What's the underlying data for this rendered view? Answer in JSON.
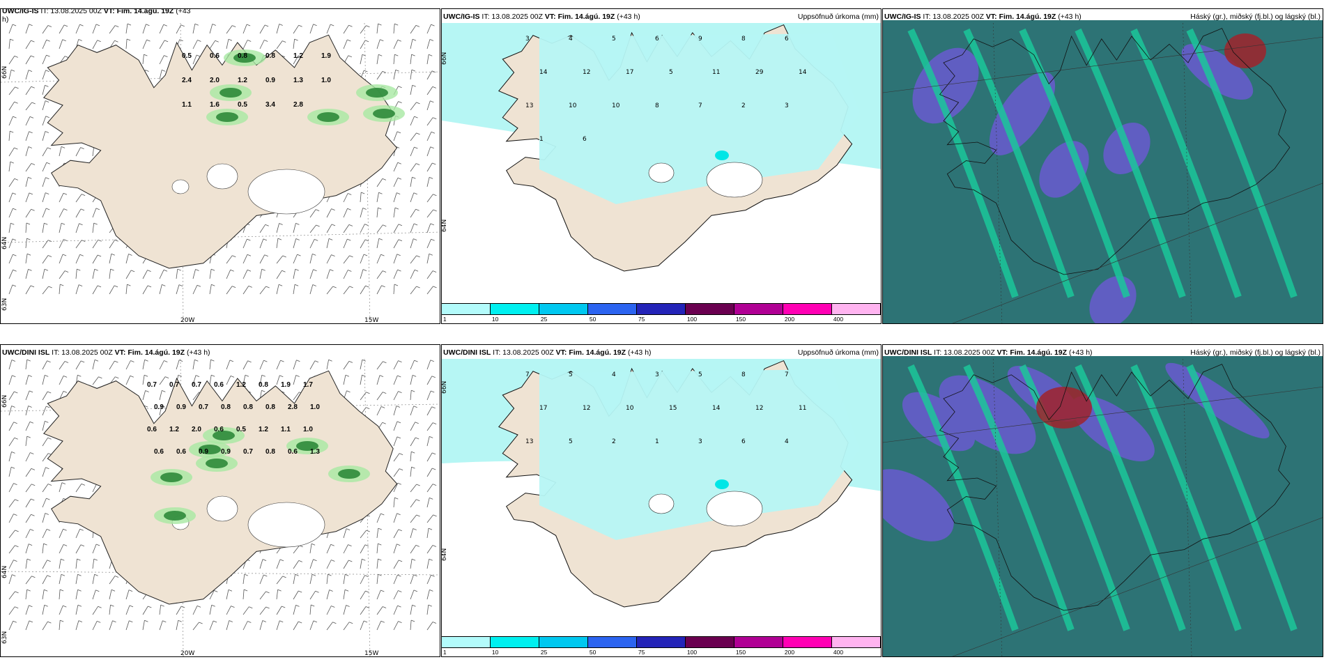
{
  "rows": [
    {
      "model": "UWC/IG-IS",
      "panels": [
        {
          "title_model": "UWC/IG-IS",
          "it": "IT: 13.08.2025 00Z",
          "vt": "VT: Fim. 14.ágú. 19Z",
          "lead": "(+43",
          "lead2": "h)",
          "right": ""
        },
        {
          "title_model": "UWC/IG-IS",
          "it": "IT: 13.08.2025 00Z",
          "vt": "VT: Fim. 14.ágú. 19Z",
          "lead": "(+43 h)",
          "right": "Uppsöfnuð úrkoma (mm)"
        },
        {
          "title_model": "UWC/IG-IS",
          "it": "IT: 13.08.2025 00Z",
          "vt": "VT: Fim. 14.ágú. 19Z",
          "lead": "(+43 h)",
          "right": "Háský (gr.), miðský (fj.bl.) og lágský (bl.)"
        }
      ],
      "gust_labels": [
        "0.5",
        "0.6",
        "0.8",
        "0.8",
        "1.2",
        "1.9",
        "2.4",
        "2.0",
        "1.2",
        "0.9",
        "1.3",
        "1.0",
        "1.1",
        "1.6",
        "0.5",
        "3.4",
        "2.8"
      ],
      "rain_labels": [
        "3",
        "4",
        "5",
        "6",
        "9",
        "8",
        "6",
        "14",
        "12",
        "17",
        "5",
        "11",
        "29",
        "14",
        "13",
        "10",
        "10",
        "8",
        "7",
        "2",
        "3",
        "1",
        "6"
      ]
    },
    {
      "model": "UWC/DINI ISL",
      "panels": [
        {
          "title_model": "UWC/DINI ISL",
          "it": "IT: 13.08.2025 00Z",
          "vt": "VT: Fim. 14.ágú. 19Z",
          "lead": "(+43 h)",
          "right": ""
        },
        {
          "title_model": "UWC/DINI ISL",
          "it": "IT: 13.08.2025 00Z",
          "vt": "VT: Fim. 14.ágú. 19Z",
          "lead": "(+43 h)",
          "right": "Uppsöfnuð úrkoma (mm)"
        },
        {
          "title_model": "UWC/DINI ISL",
          "it": "IT: 13.08.2025 00Z",
          "vt": "VT: Fim. 14.ágú. 19Z",
          "lead": "(+43 h)",
          "right": "Háský (gr.), miðský (fj.bl.) og lágský (bl.)"
        }
      ],
      "gust_labels": [
        "0.7",
        "0.7",
        "0.7",
        "0.6",
        "1.2",
        "0.8",
        "1.9",
        "1.7",
        "0.9",
        "0.9",
        "0.7",
        "0.8",
        "0.8",
        "0.8",
        "2.8",
        "1.0",
        "0.6",
        "1.2",
        "2.0",
        "0.6",
        "0.5",
        "1.2",
        "1.1",
        "1.0",
        "0.6",
        "0.6",
        "0.9",
        "0.9",
        "0.7",
        "0.8",
        "0.6",
        "1.3"
      ],
      "rain_labels": [
        "7",
        "5",
        "4",
        "3",
        "5",
        "8",
        "7",
        "17",
        "12",
        "10",
        "15",
        "14",
        "12",
        "11",
        "13",
        "5",
        "2",
        "1",
        "3",
        "6",
        "4"
      ]
    }
  ],
  "axis": {
    "lat_top": "66N",
    "lat_bot": "64N",
    "lat_far": "63N",
    "lon_a": "20W",
    "lon_b": "15W"
  },
  "colorbar": {
    "ticks": [
      "1",
      "10",
      "25",
      "50",
      "75",
      "100",
      "150",
      "200",
      "400"
    ],
    "colors": [
      "#b3fbfb",
      "#00f0f0",
      "#00c8f0",
      "#2c64f0",
      "#2424b8",
      "#6a0050",
      "#b00094",
      "#ff00b4",
      "#ffb4f0"
    ]
  },
  "colors": {
    "land": "#efe3d3",
    "snow": "#ffffff",
    "sea": "#ffffff",
    "rain_light": "#b6f6f4",
    "cloud_low": "#1f5d6a",
    "cloud_mid": "#6a5bd0",
    "cloud_high": "#1cc79a"
  }
}
